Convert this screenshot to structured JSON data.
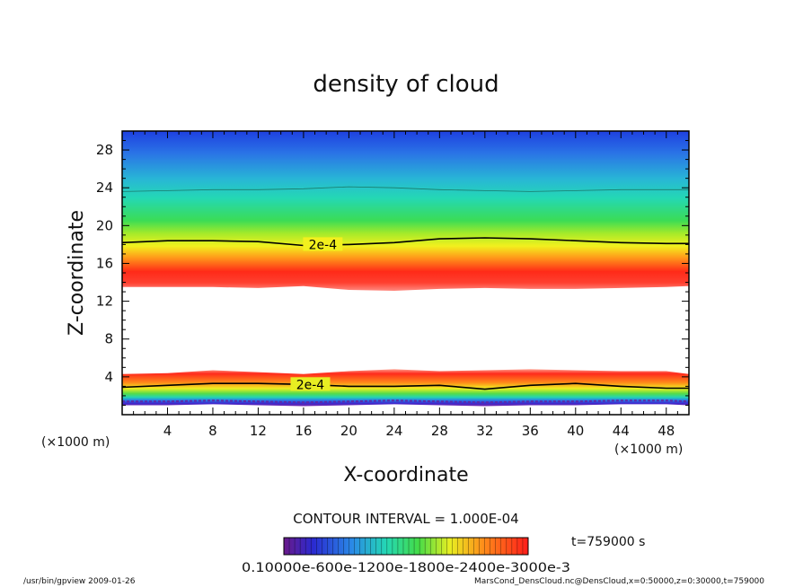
{
  "chart_data": {
    "type": "heatmap",
    "title": "density of cloud",
    "xlabel": "X-coordinate",
    "ylabel": "Z-coordinate",
    "x_unit": "(×1000 m)",
    "z_unit": "(×1000 m)",
    "xlim": [
      0,
      50
    ],
    "ylim": [
      0,
      30
    ],
    "x_ticks": [
      4,
      8,
      12,
      16,
      20,
      24,
      28,
      32,
      36,
      40,
      44,
      48
    ],
    "y_ticks": [
      4,
      8,
      12,
      16,
      20,
      24,
      28
    ],
    "contour_interval_text": "CONTOUR INTERVAL = 1.000E-04",
    "contour_label": "2e-4",
    "time_text": "t=759000 s",
    "colorbar_text": "0.10000e-600e-1200e-1800e-2400e-3000e-3",
    "colorbar_values": [
      0.0001,
      0.0006,
      0.0012,
      0.0018,
      0.0024,
      0.003
    ],
    "upper_cloud_layer": {
      "x": [
        0,
        4,
        8,
        12,
        16,
        20,
        24,
        28,
        32,
        36,
        40,
        44,
        48,
        50
      ],
      "bottom_z": [
        13.5,
        13.5,
        13.5,
        13.4,
        13.6,
        13.2,
        13.1,
        13.3,
        13.4,
        13.3,
        13.3,
        13.4,
        13.5,
        13.6
      ],
      "peak_z": [
        15.3,
        15.3,
        15.3,
        15.3,
        15.2,
        15.0,
        14.8,
        15.0,
        15.2,
        15.3,
        15.3,
        15.3,
        15.3,
        15.3
      ],
      "contour_2e-4_z": [
        18.2,
        18.4,
        18.4,
        18.3,
        17.9,
        18.0,
        18.2,
        18.6,
        18.7,
        18.6,
        18.4,
        18.2,
        18.1,
        18.1
      ],
      "top_z": [
        23.6,
        23.7,
        23.8,
        23.8,
        23.9,
        24.1,
        24.0,
        23.8,
        23.7,
        23.6,
        23.7,
        23.8,
        23.8,
        23.8
      ]
    },
    "lower_cloud_layer": {
      "x": [
        0,
        4,
        8,
        12,
        16,
        20,
        24,
        28,
        32,
        36,
        40,
        44,
        48,
        50
      ],
      "top_z": [
        4.3,
        4.4,
        4.7,
        4.5,
        4.3,
        4.6,
        4.8,
        4.6,
        4.7,
        4.8,
        4.7,
        4.6,
        4.6,
        4.3
      ],
      "peak_z": [
        3.9,
        4.0,
        4.1,
        4.0,
        3.9,
        4.0,
        4.1,
        4.0,
        4.1,
        4.2,
        4.1,
        4.0,
        4.0,
        3.9
      ],
      "contour_2e-4_z": [
        2.9,
        3.1,
        3.3,
        3.3,
        3.2,
        3.0,
        3.0,
        3.1,
        2.7,
        3.1,
        3.3,
        3.0,
        2.8,
        2.8
      ],
      "bottom_z": [
        1.0,
        1.0,
        1.1,
        1.0,
        0.9,
        1.0,
        1.1,
        1.0,
        0.9,
        1.0,
        1.0,
        1.1,
        1.1,
        1.0
      ]
    },
    "grid": false,
    "legend": "bottom colorbar"
  },
  "footer": {
    "left": "/usr/bin/gpview  2009-01-26",
    "right": "MarsCond_DensCloud.nc@DensCloud,x=0:50000,z=0:30000,t=759000"
  },
  "colors": {
    "top": "#1a3dd6",
    "mid": "#25d6a0",
    "green": "#36d84a",
    "yellow": "#e9f21f",
    "orange": "#ff8a1a",
    "red": "#ff1f1a",
    "white": "#ffffff",
    "purple": "#6a2a9a",
    "blue_dark": "#2a2ab8"
  }
}
